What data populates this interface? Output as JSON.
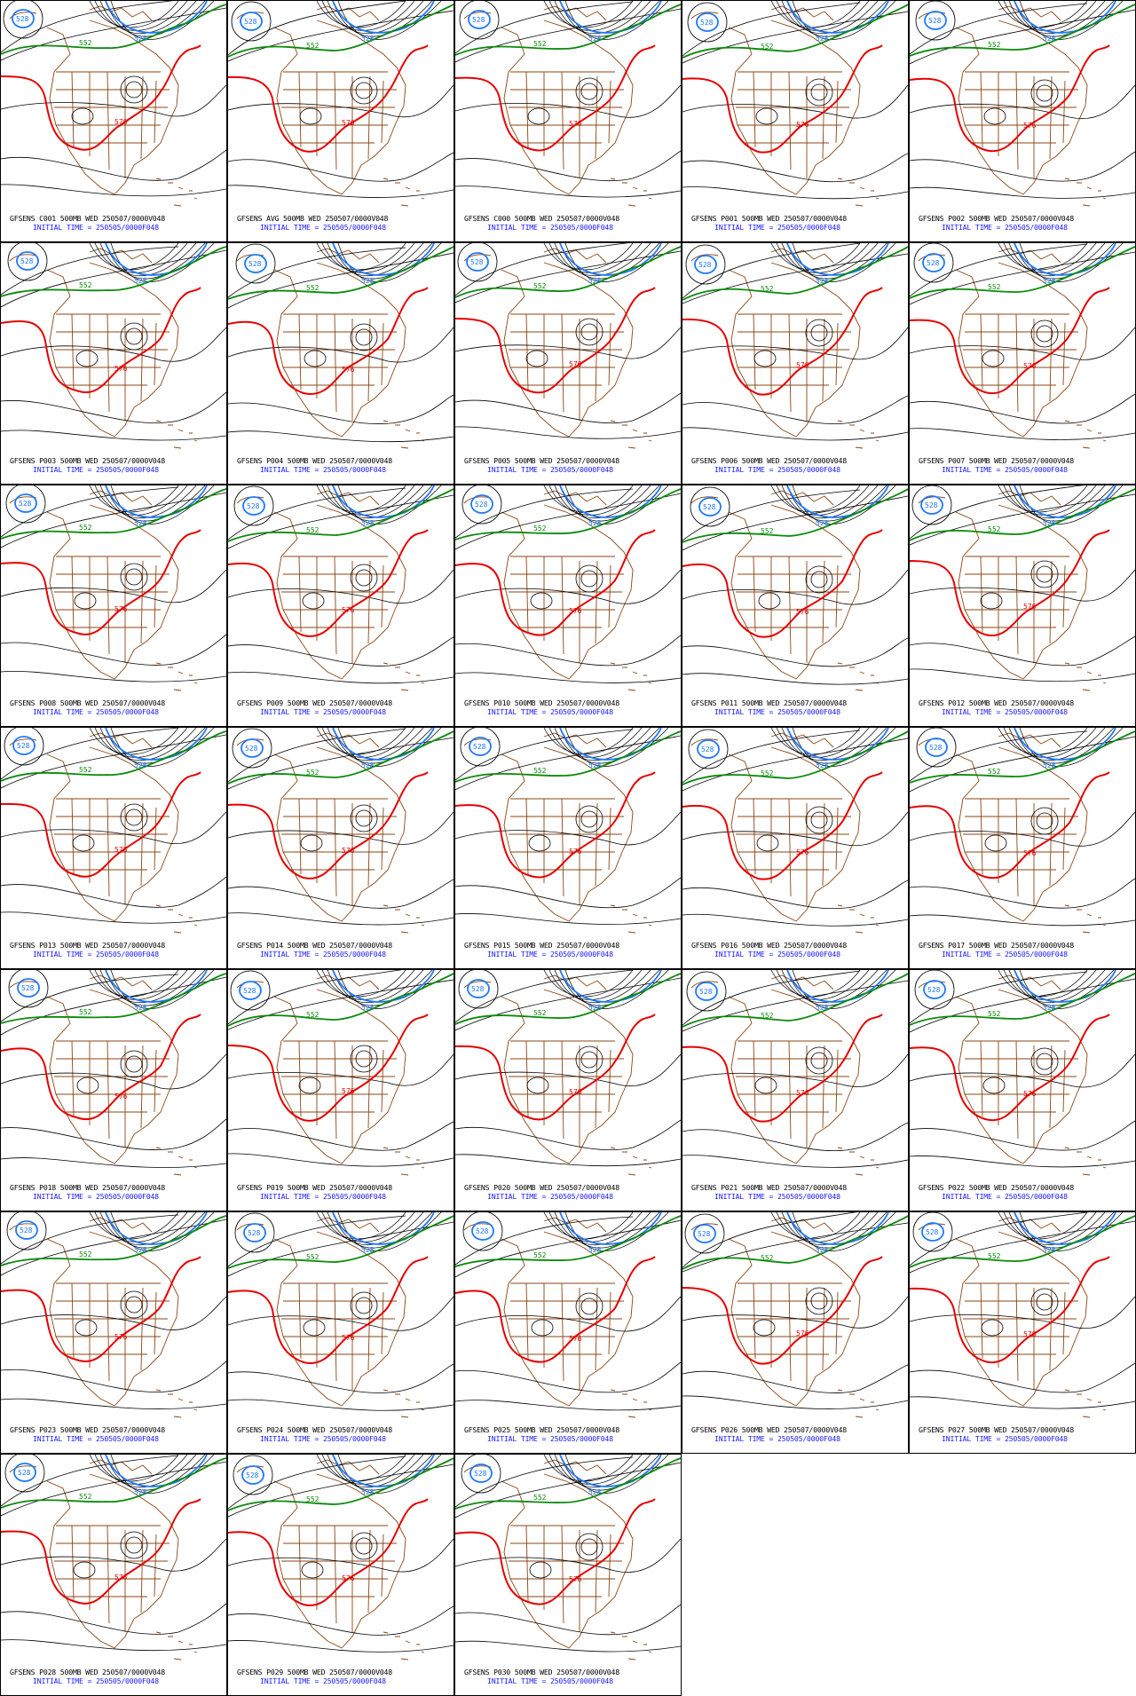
{
  "colors": {
    "height_contour": "#000000",
    "contour_528": "#1e78ff",
    "contour_552": "#0a8a0a",
    "contour_576": "#e60000",
    "borders": "#8b4513",
    "caption_line1": "#000000",
    "caption_line2": "#1a1aff"
  },
  "contour_labels": {
    "blue": "528",
    "green": "552",
    "red": "576"
  },
  "initial_time_text": "INITIAL TIME = 250505/0000F048",
  "panels": [
    {
      "title": "GFSENS C001 500MB WED 250507/0000V048"
    },
    {
      "title": "GFSENS AVG 500MB WED 250507/0000V048"
    },
    {
      "title": "GFSENS C000 500MB WED 250507/0000V048"
    },
    {
      "title": "GFSENS P001 500MB WED 250507/0000V048"
    },
    {
      "title": "GFSENS P002 500MB WED 250507/0000V048"
    },
    {
      "title": "GFSENS P003 500MB WED 250507/0000V048"
    },
    {
      "title": "GFSENS P004 500MB WED 250507/0000V048"
    },
    {
      "title": "GFSENS P005 500MB WED 250507/0000V048"
    },
    {
      "title": "GFSENS P006 500MB WED 250507/0000V048"
    },
    {
      "title": "GFSENS P007 500MB WED 250507/0000V048"
    },
    {
      "title": "GFSENS P008 500MB WED 250507/0000V048"
    },
    {
      "title": "GFSENS P009 500MB WED 250507/0000V048"
    },
    {
      "title": "GFSENS P010 500MB WED 250507/0000V048"
    },
    {
      "title": "GFSENS P011 500MB WED 250507/0000V048"
    },
    {
      "title": "GFSENS P012 500MB WED 250507/0000V048"
    },
    {
      "title": "GFSENS P013 500MB WED 250507/0000V048"
    },
    {
      "title": "GFSENS P014 500MB WED 250507/0000V048"
    },
    {
      "title": "GFSENS P015 500MB WED 250507/0000V048"
    },
    {
      "title": "GFSENS P016 500MB WED 250507/0000V048"
    },
    {
      "title": "GFSENS P017 500MB WED 250507/0000V048"
    },
    {
      "title": "GFSENS P018 500MB WED 250507/0000V048"
    },
    {
      "title": "GFSENS P019 500MB WED 250507/0000V048"
    },
    {
      "title": "GFSENS P020 500MB WED 250507/0000V048"
    },
    {
      "title": "GFSENS P021 500MB WED 250507/0000V048"
    },
    {
      "title": "GFSENS P022 500MB WED 250507/0000V048"
    },
    {
      "title": "GFSENS P023 500MB WED 250507/0000V048"
    },
    {
      "title": "GFSENS P024 500MB WED 250507/0000V048"
    },
    {
      "title": "GFSENS P025 500MB WED 250507/0000V048"
    },
    {
      "title": "GFSENS P026 500MB WED 250507/0000V048"
    },
    {
      "title": "GFSENS P027 500MB WED 250507/0000V048"
    },
    {
      "title": "GFSENS P028 500MB WED 250507/0000V048"
    },
    {
      "title": "GFSENS P029 500MB WED 250507/0000V048"
    },
    {
      "title": "GFSENS P030 500MB WED 250507/0000V048"
    }
  ]
}
